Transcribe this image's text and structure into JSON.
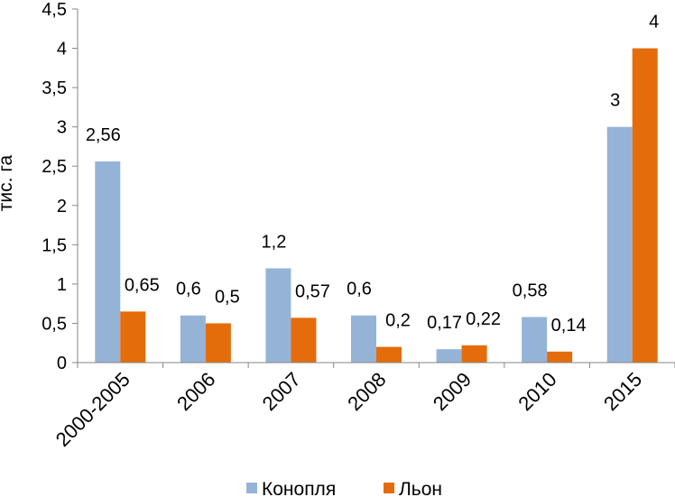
{
  "chart_data": {
    "type": "bar",
    "categories": [
      "2000-2005",
      "2006",
      "2007",
      "2008",
      "2009",
      "2010",
      "2015"
    ],
    "series": [
      {
        "name": "Конопля",
        "values": [
          2.56,
          0.6,
          1.2,
          0.6,
          0.17,
          0.58,
          3
        ],
        "labels": [
          "2,56",
          "0,6",
          "1,2",
          "0,6",
          "0,17",
          "0,58",
          "3"
        ],
        "color": "#95b3d7"
      },
      {
        "name": "Льон",
        "values": [
          0.65,
          0.5,
          0.57,
          0.2,
          0.22,
          0.14,
          4
        ],
        "labels": [
          "0,65",
          "0,5",
          "0,57",
          "0,2",
          "0,22",
          "0,14",
          "4"
        ],
        "color": "#e46c0a"
      }
    ],
    "ylabel": "тис. га",
    "ylim": [
      0,
      4.5
    ],
    "yticks": [
      0,
      0.5,
      1,
      1.5,
      2,
      2.5,
      3,
      3.5,
      4,
      4.5
    ],
    "ytick_labels": [
      "0",
      "0,5",
      "1",
      "1,5",
      "2",
      "2,5",
      "3",
      "3,5",
      "4",
      "4,5"
    ],
    "grid": false,
    "legend_position": "bottom"
  }
}
